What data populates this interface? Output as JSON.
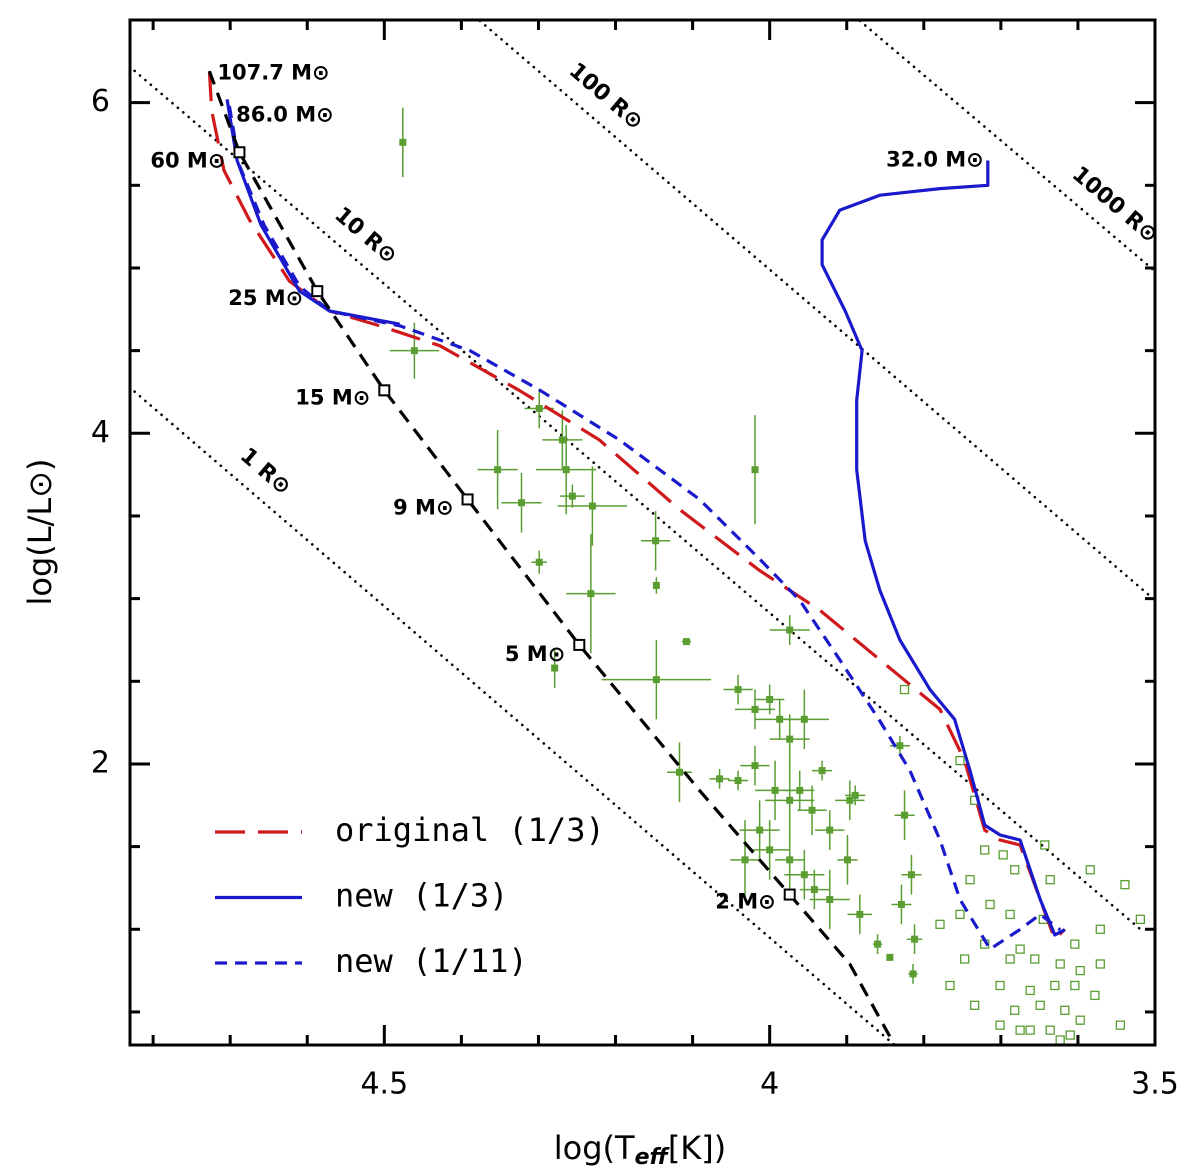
{
  "chart_data": {
    "type": "line",
    "xlim": [
      4.83,
      3.5
    ],
    "ylim": [
      0.3,
      6.5
    ],
    "xticks": [
      4.5,
      4,
      3.5
    ],
    "yticks": [
      2,
      4,
      6
    ],
    "xminor": [
      4.8,
      4.7,
      4.6,
      4.4,
      4.3,
      4.2,
      4.1,
      3.9,
      3.8,
      3.7,
      3.6
    ],
    "yminor": [
      0.5,
      1,
      1.5,
      2.5,
      3,
      3.5,
      4.5,
      5,
      5.5
    ],
    "x_label": [
      "log(T",
      "eff",
      "[K])"
    ],
    "y_label": "log(L/L⊙)",
    "legend": "lower left",
    "series": [
      {
        "name": "original (1/3)",
        "color": "#d0191b",
        "dash": "30,13",
        "x": [
          4.727,
          4.724,
          4.708,
          4.675,
          4.623,
          4.571,
          4.506,
          4.428,
          4.325,
          4.221,
          4.117,
          4.013,
          3.935,
          3.857,
          3.779,
          3.747,
          3.721,
          3.701,
          3.675,
          3.649,
          3.63,
          3.617
        ],
        "values": [
          6.19,
          5.95,
          5.59,
          5.29,
          4.92,
          4.74,
          4.65,
          4.53,
          4.26,
          3.96,
          3.54,
          3.17,
          2.93,
          2.63,
          2.33,
          2.02,
          1.6,
          1.54,
          1.51,
          1.18,
          0.94,
          1.0
        ]
      },
      {
        "name": "new (1/3)",
        "color": "#1a1acc",
        "dash": "",
        "x": [
          4.704,
          4.691,
          4.66,
          4.61,
          4.571,
          4.48,
          null,
          3.617,
          3.63,
          3.649,
          3.675,
          3.701,
          3.721,
          3.74,
          3.76,
          3.792,
          3.831,
          3.857,
          3.876,
          3.887,
          3.887,
          3.88,
          3.902,
          3.932,
          3.932,
          3.909,
          3.857,
          3.779,
          3.717,
          3.717
        ],
        "values": [
          6.02,
          5.65,
          5.26,
          4.86,
          4.74,
          4.66,
          null,
          0.997,
          0.966,
          1.18,
          1.54,
          1.57,
          1.63,
          1.96,
          2.27,
          2.45,
          2.75,
          3.05,
          3.35,
          3.78,
          4.2,
          4.5,
          4.74,
          5.02,
          5.17,
          5.35,
          5.44,
          5.48,
          5.5,
          5.65
        ]
      },
      {
        "name": "new (1/11)",
        "color": "#1a1acc",
        "dash": "12,8",
        "x": [
          4.701,
          4.688,
          4.656,
          4.61,
          4.571,
          4.48,
          4.389,
          4.298,
          4.195,
          4.091,
          4.013,
          3.961,
          3.909,
          3.857,
          3.818,
          3.779,
          3.753,
          3.714,
          3.675,
          3.649,
          3.623
        ],
        "values": [
          5.98,
          5.62,
          5.26,
          4.89,
          4.74,
          4.65,
          4.5,
          4.26,
          3.96,
          3.6,
          3.24,
          2.99,
          2.63,
          2.26,
          1.96,
          1.54,
          1.18,
          0.88,
          0.999,
          1.09,
          0.997
        ]
      },
      {
        "color": "#000000",
        "dash": "14,9",
        "x": [
          4.727,
          4.688,
          4.587,
          4.5,
          4.392,
          4.247,
          4.091,
          3.974,
          3.896,
          3.838
        ],
        "values": [
          6.19,
          5.7,
          4.86,
          4.26,
          3.6,
          2.72,
          1.84,
          1.21,
          0.79,
          0.3
        ]
      }
    ],
    "radius_lines": [
      {
        "label": "1 R⊙",
        "x": [
          4.831,
          3.838
        ],
        "y": [
          4.28,
          0.3
        ]
      },
      {
        "label": "10 R⊙",
        "x": [
          4.831,
          3.519
        ],
        "y": [
          6.22,
          1.0
        ]
      },
      {
        "label": "100 R⊙",
        "x": [
          4.376,
          3.5
        ],
        "y": [
          6.495,
          2.99
        ]
      },
      {
        "label": "1000 R⊙",
        "x": [
          3.883,
          3.5
        ],
        "y": [
          6.495,
          4.98
        ]
      }
    ],
    "annotations": [
      {
        "text": "107.7 M⊙",
        "x": 4.727,
        "y": 6.19,
        "marker": false
      },
      {
        "text": "86.0 M⊙",
        "x": 4.704,
        "y": 6.02,
        "marker": false
      },
      {
        "text": "60 M⊙",
        "x": 4.688,
        "y": 5.7,
        "marker": true
      },
      {
        "text": "25 M⊙",
        "x": 4.587,
        "y": 4.86,
        "marker": true
      },
      {
        "text": "15 M⊙",
        "x": 4.5,
        "y": 4.26,
        "marker": true
      },
      {
        "text": "9 M⊙",
        "x": 4.392,
        "y": 3.6,
        "marker": true
      },
      {
        "text": "5 M⊙",
        "x": 4.247,
        "y": 2.72,
        "marker": true
      },
      {
        "text": "2 M⊙",
        "x": 3.974,
        "y": 1.21,
        "marker": true
      },
      {
        "text": "32.0 M⊙",
        "x": 3.717,
        "y": 5.65,
        "marker": false
      }
    ],
    "points_filled": {
      "color": "#5a9e32",
      "x": [
        4.476,
        4.461,
        4.299,
        4.269,
        4.353,
        4.322,
        4.299,
        4.264,
        4.256,
        4.23,
        4.232,
        4.279,
        4.148,
        4.147,
        4.108,
        4.147,
        4.019,
        4.117,
        4.041,
        4.019,
        4.0,
        3.987,
        3.974,
        3.955,
        4.065,
        4.041,
        4.019,
        3.993,
        3.974,
        3.961,
        3.932,
        3.945,
        3.922,
        3.896,
        3.889,
        4.0,
        3.974,
        3.955,
        3.942,
        3.922,
        3.899,
        3.883,
        3.86,
        3.829,
        3.825,
        3.816,
        3.812,
        3.814,
        4.013,
        4.032,
        3.844,
        3.974,
        3.831
      ],
      "y": [
        5.76,
        4.5,
        4.15,
        3.96,
        3.78,
        3.58,
        3.22,
        3.78,
        3.62,
        3.56,
        3.03,
        2.58,
        3.35,
        3.08,
        2.74,
        2.51,
        3.78,
        1.95,
        2.45,
        2.33,
        2.39,
        2.27,
        2.15,
        2.27,
        1.91,
        1.9,
        1.99,
        1.84,
        1.78,
        1.84,
        1.96,
        1.72,
        1.6,
        1.78,
        1.81,
        1.48,
        1.42,
        1.33,
        1.24,
        1.18,
        1.42,
        1.09,
        0.91,
        1.15,
        1.69,
        1.33,
        0.94,
        0.73,
        1.6,
        1.42,
        0.83,
        2.81,
        2.11
      ],
      "xerr": [
        0,
        0.032,
        0.019,
        0.026,
        0.026,
        0.026,
        0.01,
        0.039,
        0.016,
        0.045,
        0.032,
        0,
        0.019,
        0,
        0.006,
        0.071,
        0,
        0.016,
        0.019,
        0.026,
        0.019,
        0.032,
        0.026,
        0.032,
        0.013,
        0.013,
        0.019,
        0.026,
        0.032,
        0.019,
        0.013,
        0.019,
        0.019,
        0.019,
        0.013,
        0.026,
        0.019,
        0.026,
        0.019,
        0.026,
        0.013,
        0.016,
        0.006,
        0.013,
        0.013,
        0.013,
        0.01,
        0.006,
        0.026,
        0.019,
        0,
        0.026,
        0.013
      ],
      "yerr": [
        0.21,
        0.17,
        0.12,
        0.18,
        0.24,
        0.18,
        0.07,
        0.27,
        0.07,
        0.24,
        0.36,
        0.12,
        0.18,
        0.05,
        0,
        0.24,
        0.33,
        0.18,
        0.09,
        0.12,
        0.09,
        0.12,
        0.15,
        0.18,
        0.06,
        0.06,
        0.12,
        0.18,
        0.24,
        0.12,
        0.06,
        0.15,
        0.12,
        0.12,
        0.06,
        0.18,
        0.18,
        0.15,
        0.12,
        0.18,
        0.15,
        0.12,
        0.06,
        0.12,
        0.15,
        0.12,
        0.09,
        0.06,
        0.18,
        0.24,
        0,
        0.09,
        0.06
      ]
    },
    "points_open": {
      "color": "#5a9e32",
      "x": [
        3.825,
        3.753,
        3.734,
        3.721,
        3.697,
        3.643,
        3.682,
        3.636,
        3.584,
        3.539,
        3.753,
        3.714,
        3.688,
        3.779,
        3.721,
        3.675,
        3.656,
        3.623,
        3.597,
        3.766,
        3.701,
        3.662,
        3.63,
        3.604,
        3.578,
        3.734,
        3.682,
        3.649,
        3.617,
        3.597,
        3.545,
        3.701,
        3.662,
        3.636,
        3.61,
        3.519,
        3.571,
        3.688,
        3.675,
        3.623,
        3.74,
        3.747,
        3.645,
        3.604,
        3.571
      ],
      "y": [
        2.45,
        2.02,
        1.78,
        1.48,
        1.45,
        1.51,
        1.36,
        1.3,
        1.36,
        1.27,
        1.09,
        1.15,
        1.09,
        1.03,
        0.91,
        0.88,
        0.82,
        0.79,
        0.75,
        0.66,
        0.66,
        0.63,
        0.66,
        0.66,
        0.6,
        0.54,
        0.51,
        0.54,
        0.51,
        0.45,
        0.42,
        0.42,
        0.39,
        0.39,
        0.36,
        1.06,
        0.79,
        0.82,
        0.39,
        0.33,
        1.3,
        0.82,
        1.06,
        0.91,
        1.0
      ]
    }
  }
}
